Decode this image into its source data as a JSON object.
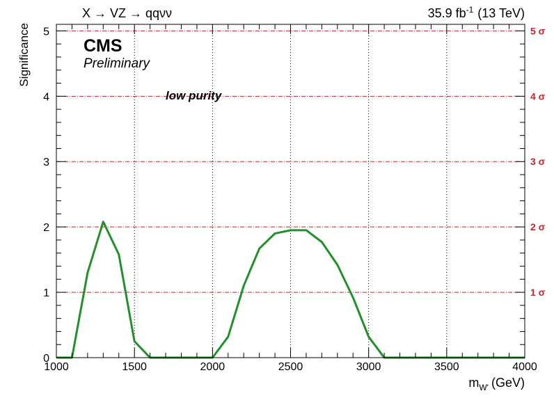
{
  "header": {
    "process": "X → VZ → qqνν",
    "lumi": "35.9 fb",
    "lumi_exp": "-1",
    "energy": "(13 TeV)"
  },
  "labels": {
    "experiment": "CMS",
    "status": "Preliminary",
    "category": "low purity"
  },
  "chart_data": {
    "type": "line",
    "xlabel_main": "m",
    "xlabel_sub": "W'",
    "xlabel_unit": "(GeV)",
    "ylabel": "Significance",
    "xlim": [
      1000,
      4000
    ],
    "ylim": [
      0,
      5.1
    ],
    "xticks": [
      1000,
      1500,
      2000,
      2500,
      3000,
      3500,
      4000
    ],
    "yticks": [
      0,
      1,
      2,
      3,
      4,
      5
    ],
    "grid": true,
    "sigma_lines": [
      {
        "value": 1,
        "label": "1 σ"
      },
      {
        "value": 2,
        "label": "2 σ"
      },
      {
        "value": 3,
        "label": "3 σ"
      },
      {
        "value": 4,
        "label": "4 σ"
      },
      {
        "value": 5,
        "label": "5 σ"
      }
    ],
    "series": [
      {
        "color": "#22902a",
        "x": [
          1000,
          1100,
          1200,
          1300,
          1400,
          1500,
          1600,
          1700,
          1800,
          1900,
          2000,
          2100,
          2200,
          2300,
          2400,
          2500,
          2600,
          2700,
          2800,
          2900,
          3000,
          3100,
          3200,
          3300,
          3400,
          3500,
          3600,
          3700,
          3800,
          3900,
          4000
        ],
        "y": [
          0,
          0,
          1.3,
          2.08,
          1.58,
          0.25,
          0,
          0,
          0,
          0,
          0,
          0.32,
          1.1,
          1.67,
          1.9,
          1.95,
          1.95,
          1.77,
          1.42,
          0.92,
          0.32,
          0,
          0,
          0,
          0,
          0,
          0,
          0,
          0,
          0,
          0
        ]
      }
    ],
    "sigma_color": "#c0282d"
  }
}
